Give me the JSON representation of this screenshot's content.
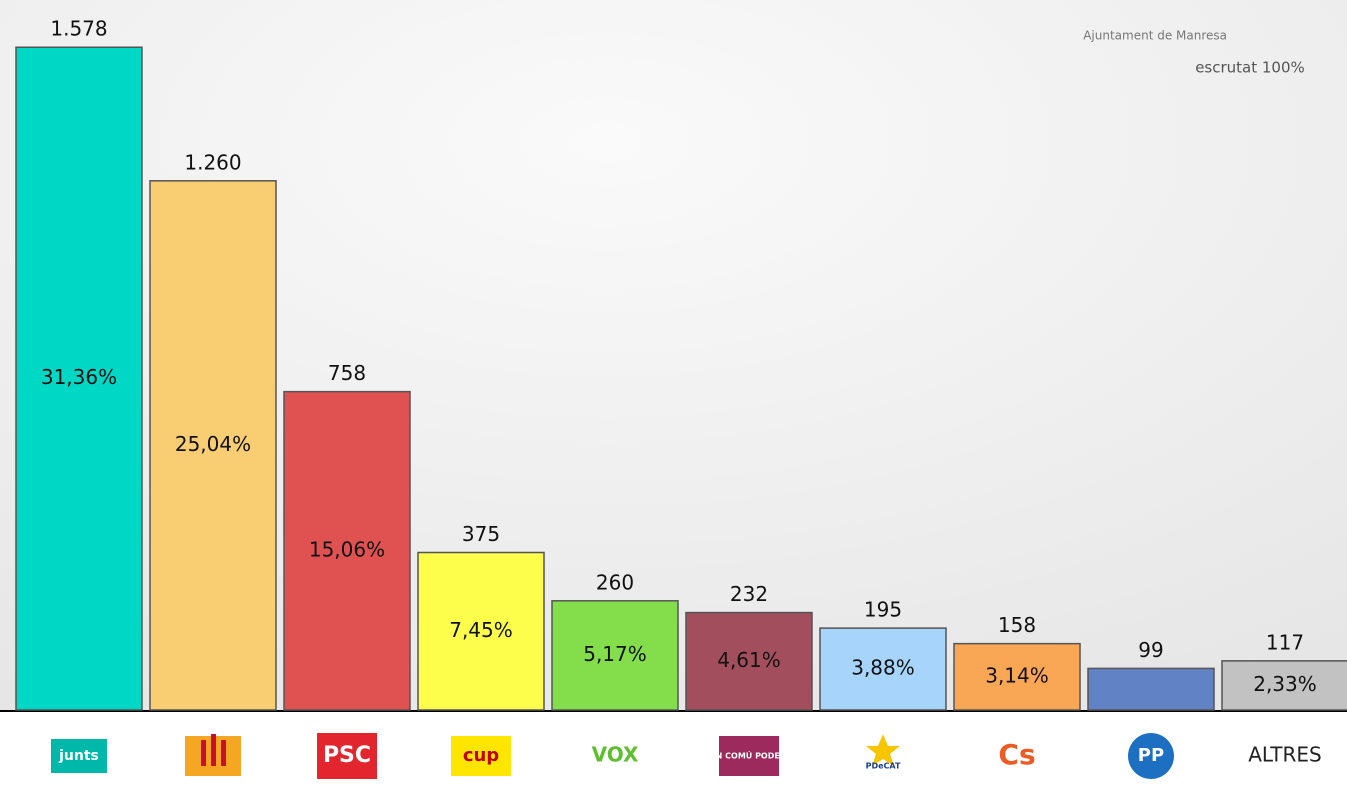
{
  "chart_data": {
    "type": "bar",
    "header_note": "Ajuntament de Manresa",
    "status": "escrutat 100%",
    "categories": [
      "junts",
      null,
      "PSC",
      "cup",
      "VOX",
      "EN COMÚ PODEM",
      "PDeCAT",
      "Cs",
      "PP",
      "ALTRES"
    ],
    "values": [
      1578,
      1260,
      758,
      375,
      260,
      232,
      195,
      158,
      99,
      117
    ],
    "value_labels": [
      "1.578",
      "1.260",
      "758",
      "375",
      "260",
      "232",
      "195",
      "158",
      "99",
      "117"
    ],
    "shares": [
      31.36,
      25.04,
      15.06,
      7.45,
      5.17,
      4.61,
      3.88,
      3.14,
      null,
      2.33
    ],
    "share_labels": [
      "31,36%",
      "25,04%",
      "15,06%",
      "7,45%",
      "5,17%",
      "4,61%",
      "3,88%",
      "3,14%",
      null,
      "2,33%"
    ],
    "colors": [
      "#00d8c6",
      "#f9cd72",
      "#e05252",
      "#fdfd4c",
      "#84de4c",
      "#a34e5c",
      "#a6d4fb",
      "#f9a655",
      "#6282c6",
      "#c2c2c2"
    ],
    "ylim": [
      0,
      1600
    ]
  }
}
